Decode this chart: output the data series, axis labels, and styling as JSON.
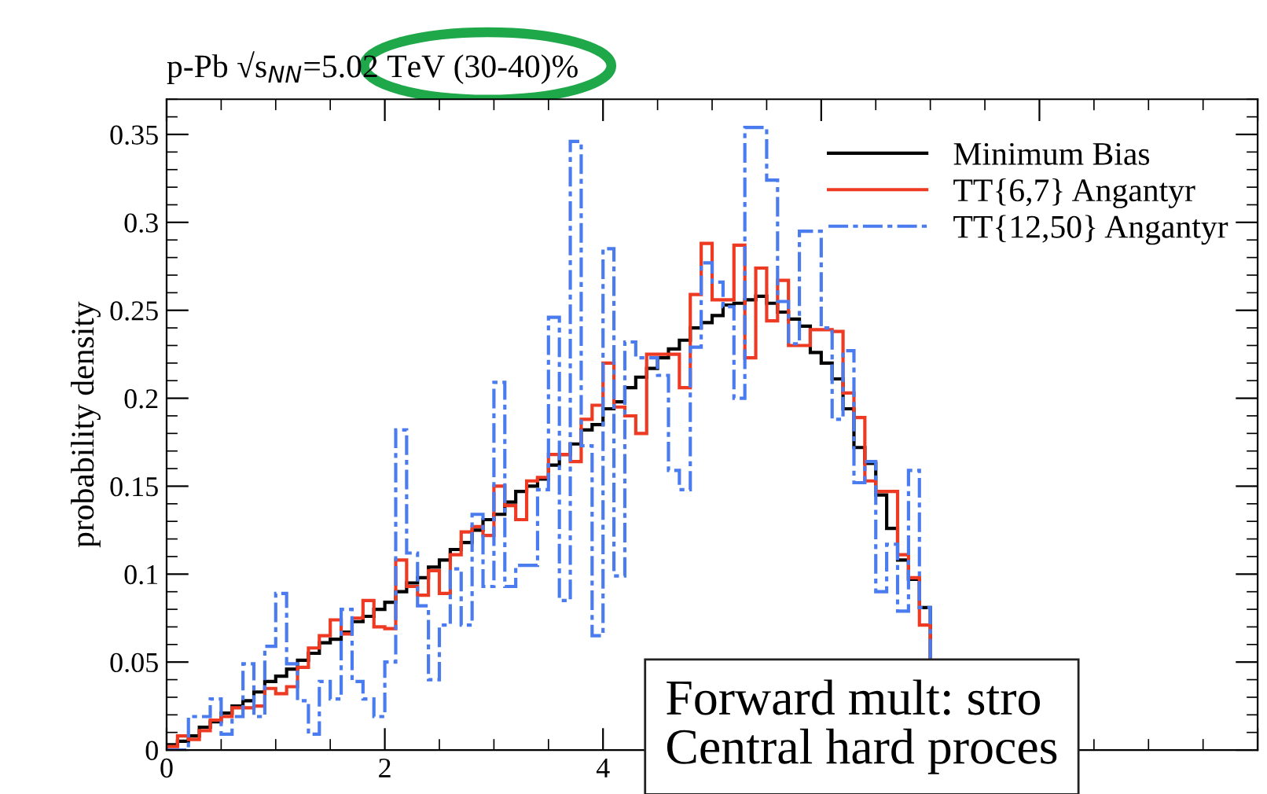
{
  "chart_data": {
    "type": "histogram",
    "title": "p-Pb √s$_{NN}$=5.02 TeV (30-40)%",
    "ylabel": "probability density",
    "bins": [
      0,
      0.1,
      0.2,
      0.3,
      0.4,
      0.5,
      0.6,
      0.7,
      0.8,
      0.9,
      1.0,
      1.1,
      1.2,
      1.3,
      1.4,
      1.5,
      1.6,
      1.7,
      1.8,
      1.9,
      2.0,
      2.1,
      2.2,
      2.3,
      2.4,
      2.5,
      2.6,
      2.7,
      2.8,
      2.9,
      3.0,
      3.1,
      3.2,
      3.3,
      3.4,
      3.5,
      3.6,
      3.7,
      3.8,
      3.9,
      4.0,
      4.1,
      4.2,
      4.3,
      4.4,
      4.5,
      4.6,
      4.7,
      4.8,
      4.9,
      5.0,
      5.1,
      5.2,
      5.3,
      5.4,
      5.5,
      5.6,
      5.7,
      5.8,
      5.9,
      6.0,
      6.1,
      6.2,
      6.3,
      6.4,
      6.5,
      6.6,
      6.7,
      6.8,
      6.9,
      7.0
    ],
    "series": [
      {
        "name": "Minimum Bias",
        "color": "#000000",
        "line_style": "solid",
        "values": [
          0.003,
          0.005,
          0.008,
          0.013,
          0.016,
          0.021,
          0.025,
          0.028,
          0.033,
          0.039,
          0.042,
          0.046,
          0.051,
          0.055,
          0.061,
          0.063,
          0.067,
          0.073,
          0.076,
          0.08,
          0.084,
          0.09,
          0.095,
          0.098,
          0.104,
          0.108,
          0.114,
          0.118,
          0.125,
          0.131,
          0.134,
          0.141,
          0.147,
          0.15,
          0.154,
          0.162,
          0.168,
          0.174,
          0.182,
          0.185,
          0.194,
          0.198,
          0.206,
          0.212,
          0.217,
          0.223,
          0.228,
          0.233,
          0.24,
          0.243,
          0.247,
          0.253,
          0.254,
          0.256,
          0.258,
          0.254,
          0.249,
          0.245,
          0.241,
          0.226,
          0.22,
          0.211,
          0.194,
          0.172,
          0.163,
          0.145,
          0.126,
          0.108,
          0.097,
          0.081
        ]
      },
      {
        "name": "TT{6,7} Angantyr",
        "color": "#ee3a22",
        "line_style": "solid",
        "values": [
          0.002,
          0.008,
          0.006,
          0.011,
          0.017,
          0.019,
          0.024,
          0.024,
          0.025,
          0.035,
          0.032,
          0.036,
          0.047,
          0.058,
          0.065,
          0.074,
          0.066,
          0.075,
          0.085,
          0.07,
          0.069,
          0.108,
          0.093,
          0.088,
          0.102,
          0.089,
          0.111,
          0.124,
          0.127,
          0.122,
          0.15,
          0.139,
          0.131,
          0.153,
          0.155,
          0.168,
          0.168,
          0.164,
          0.188,
          0.196,
          0.22,
          0.195,
          0.19,
          0.18,
          0.225,
          0.225,
          0.225,
          0.206,
          0.259,
          0.288,
          0.256,
          0.256,
          0.287,
          0.223,
          0.274,
          0.244,
          0.267,
          0.23,
          0.23,
          0.239,
          0.239,
          0.238,
          0.203,
          0.189,
          0.153,
          0.147,
          0.147,
          0.111,
          0.098,
          0.071
        ]
      },
      {
        "name": "TT{12,50} Angantyr",
        "color": "#4a7cf0",
        "line_style": "dashed",
        "values": [
          0,
          0,
          0.019,
          0.019,
          0.029,
          0.009,
          0.019,
          0.049,
          0.019,
          0.059,
          0.089,
          0.049,
          0.028,
          0.009,
          0.039,
          0.029,
          0.08,
          0.039,
          0.029,
          0.019,
          0.05,
          0.182,
          0.112,
          0.082,
          0.04,
          0.071,
          0.103,
          0.071,
          0.134,
          0.093,
          0.209,
          0.093,
          0.105,
          0.105,
          0.148,
          0.246,
          0.085,
          0.346,
          0.173,
          0.065,
          0.285,
          0.099,
          0.232,
          0.223,
          0.223,
          0.213,
          0.159,
          0.148,
          0.229,
          0.277,
          0.266,
          0.252,
          0.2,
          0.354,
          0.354,
          0.324,
          0.255,
          0.231,
          0.295,
          0.295,
          0.24,
          0.188,
          0.227,
          0.152,
          0.164,
          0.09,
          0.117,
          0.079,
          0.159,
          0.081
        ]
      }
    ],
    "xlim": [
      0,
      10
    ],
    "ylim": [
      0,
      0.37
    ],
    "xticks": [
      0,
      2,
      4,
      {
        "value": 6,
        "label": null
      },
      {
        "value": 8,
        "label": null
      },
      {
        "value": 10,
        "label": null
      }
    ],
    "yticks": [
      0,
      0.05,
      0.1,
      0.15,
      0.2,
      0.25,
      0.3,
      0.35
    ],
    "grid": false,
    "legend": "top right",
    "annotations": [
      "Forward mult: stro",
      "Central hard proces"
    ]
  }
}
